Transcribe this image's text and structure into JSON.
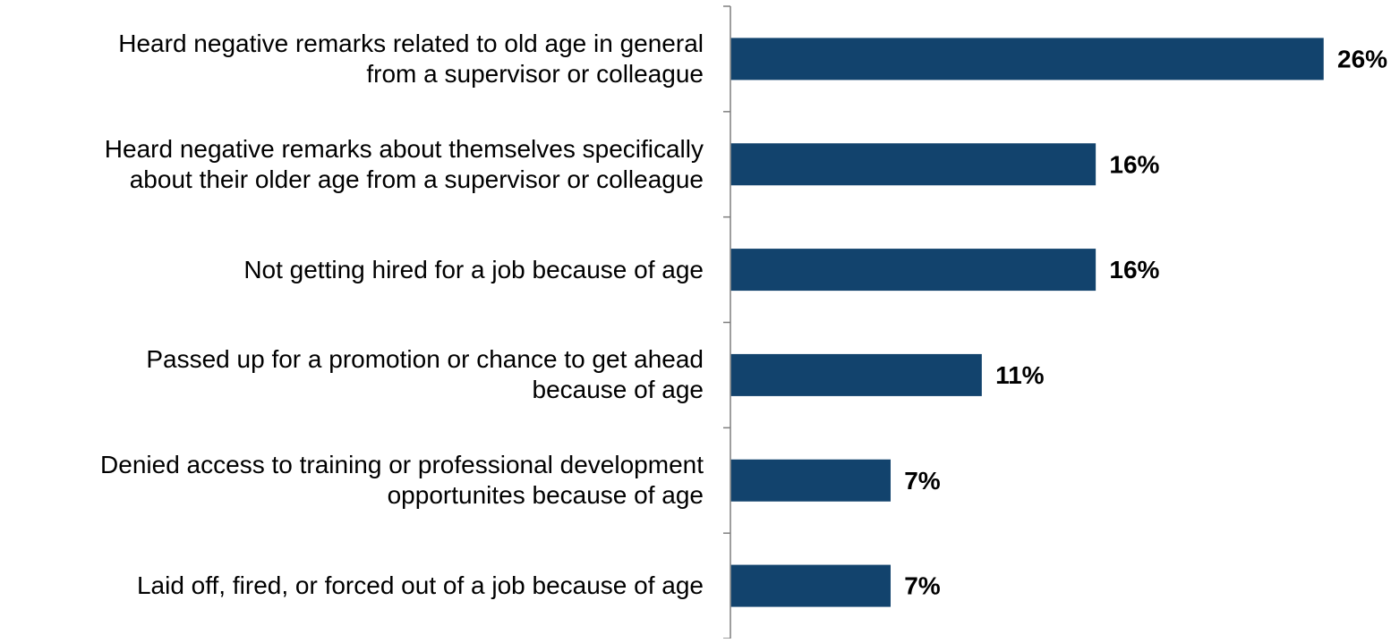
{
  "chart_data": {
    "type": "bar",
    "orientation": "horizontal",
    "categories": [
      [
        "Heard negative remarks related to old age in general",
        "from a supervisor or colleague"
      ],
      [
        "Heard negative remarks about themselves specifically",
        "about their older age from a supervisor or colleague"
      ],
      [
        "Not getting hired for a job because of age"
      ],
      [
        "Passed up for a promotion or chance to get ahead",
        "because of age"
      ],
      [
        "Denied access to training or professional development",
        "opportunites because of age"
      ],
      [
        "Laid off, fired, or forced out of a job because of age"
      ]
    ],
    "values": [
      26,
      16,
      16,
      11,
      7,
      7
    ],
    "data_labels": [
      "26%",
      "16%",
      "16%",
      "11%",
      "7%",
      "7%"
    ],
    "xlim": [
      0,
      26
    ],
    "bar_color": "#12436d",
    "label_color": "#000000",
    "axis_color": "#7f7f7f",
    "grid": false,
    "legend": "none"
  }
}
